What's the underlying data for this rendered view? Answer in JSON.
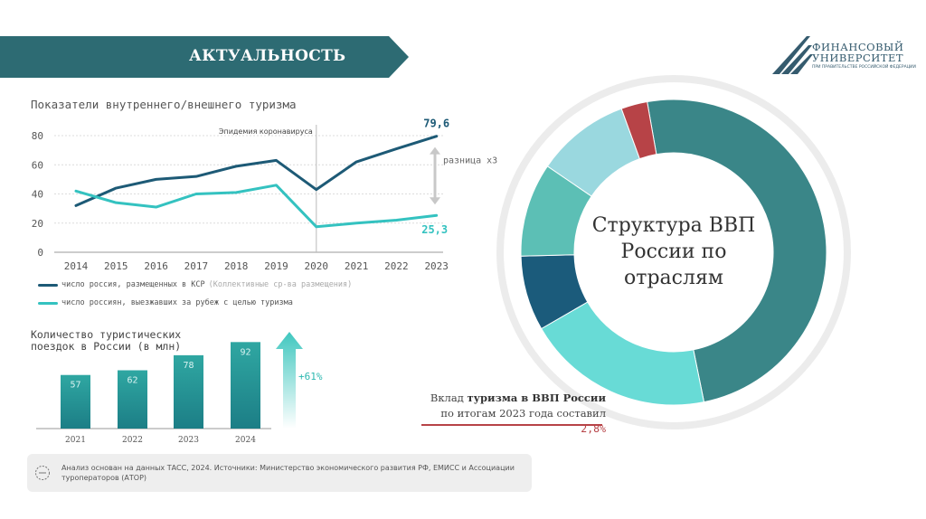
{
  "banner": {
    "title": "АКТУАЛЬНОСТЬ",
    "color": "#2d6b73"
  },
  "logo": {
    "line1": "ФИНАНСОВЫЙ",
    "line2": "УНИВЕРСИТЕТ",
    "sub": "ПРИ ПРАВИТЕЛЬСТВЕ РОССИЙСКОЙ ФЕДЕРАЦИИ"
  },
  "line_chart": {
    "title": "Показатели внутреннего/внешнего туризма",
    "annotation": "Эпидемия коронавируса",
    "diff_label": "разница х3",
    "end_label_1": "79,6",
    "end_label_2": "25,3",
    "legend": [
      {
        "label": "число россия, размещенных в КСР",
        "note": "(Коллективные ср-ва размещения)",
        "color": "#1d5a76"
      },
      {
        "label": "число россиян, выезжавших за рубеж с целью туризма",
        "note": "",
        "color": "#34c2c0"
      }
    ]
  },
  "bar_chart": {
    "title": "Количество туристических поездок в России (в млн)",
    "growth": "+61%"
  },
  "source": {
    "text": "Анализ основан на данных ТАСС, 2024. Источники: Министерство экономического развития РФ, ЕМИСС и Ассоциации туроператоров (АТОР)"
  },
  "donut": {
    "center": "Структура ВВП России по отраслям",
    "note_prefix": "Вклад",
    "note_bold": "туризма в ВВП России",
    "note_mid": "по итогам 2023 года составил",
    "note_pct": "2,8%"
  },
  "chart_data": [
    {
      "type": "line",
      "x": [
        "2014",
        "2015",
        "2016",
        "2017",
        "2018",
        "2019",
        "2020",
        "2021",
        "2022",
        "2023"
      ],
      "ylim": [
        0,
        80
      ],
      "yticks": [
        0,
        20,
        40,
        60,
        80
      ],
      "series": [
        {
          "name": "число россия, размещенных в КСР",
          "values": [
            32,
            44,
            50,
            52,
            59,
            63,
            43,
            62,
            71,
            79.6
          ],
          "color": "#1d5a76"
        },
        {
          "name": "число россиян, выезжавших за рубеж с целью туризма",
          "values": [
            42,
            34,
            31,
            40,
            41,
            46,
            17.5,
            20,
            22,
            25.3
          ],
          "color": "#34c2c0"
        }
      ]
    },
    {
      "type": "bar",
      "categories": [
        "2021",
        "2022",
        "2023",
        "2024"
      ],
      "values": [
        57,
        62,
        78,
        92
      ],
      "ylim": [
        0,
        100
      ]
    },
    {
      "type": "pie",
      "values": [
        50,
        20,
        8,
        10,
        10,
        2.8
      ],
      "colors": [
        "#3a8688",
        "#68dbd6",
        "#1b5b7b",
        "#5cbfb5",
        "#9ad8df",
        "#b74347"
      ]
    }
  ]
}
